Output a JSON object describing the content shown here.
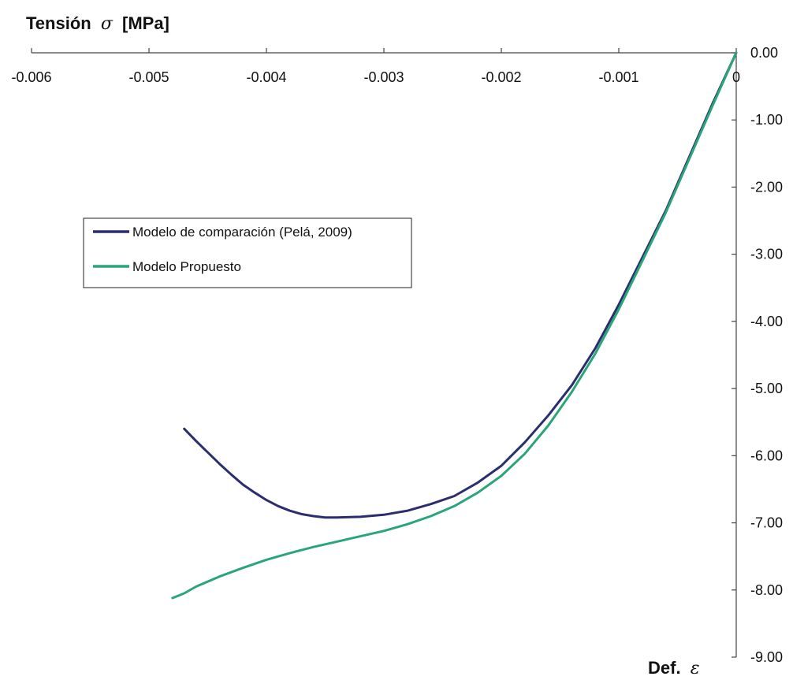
{
  "chart_data": {
    "type": "line",
    "title": "",
    "ylabel": {
      "text": "Tensión",
      "symbol": "σ",
      "unit": "[MPa]"
    },
    "xlabel": {
      "text": "Def.",
      "symbol": "ε"
    },
    "xlim": [
      -0.006,
      0
    ],
    "ylim": [
      -9,
      0
    ],
    "x_ticks": [
      -0.006,
      -0.005,
      -0.004,
      -0.003,
      -0.002,
      -0.001,
      0
    ],
    "x_tick_labels": [
      "-0.006",
      "-0.005",
      "-0.004",
      "-0.003",
      "-0.002",
      "-0.001",
      "0"
    ],
    "y_ticks": [
      0,
      -1,
      -2,
      -3,
      -4,
      -5,
      -6,
      -7,
      -8,
      -9
    ],
    "y_tick_labels": [
      "0.00",
      "-1.00",
      "-2.00",
      "-3.00",
      "-4.00",
      "-5.00",
      "-6.00",
      "-7.00",
      "-8.00",
      "-9.00"
    ],
    "grid": false,
    "legend_position": "left-middle",
    "series": [
      {
        "name": "Modelo de comparación (Pelá, 2009)",
        "color": "#2b2d6e",
        "x": [
          0,
          -0.0002,
          -0.0004,
          -0.0006,
          -0.0008,
          -0.001,
          -0.0012,
          -0.0014,
          -0.0016,
          -0.0018,
          -0.002,
          -0.0022,
          -0.0024,
          -0.0026,
          -0.0028,
          -0.003,
          -0.0032,
          -0.0034,
          -0.0035,
          -0.0036,
          -0.0037,
          -0.0038,
          -0.0039,
          -0.004,
          -0.0041,
          -0.0042,
          -0.0043,
          -0.0044,
          -0.0045,
          -0.0046,
          -0.0047
        ],
        "y": [
          0,
          -0.75,
          -1.55,
          -2.35,
          -3.05,
          -3.75,
          -4.4,
          -4.95,
          -5.4,
          -5.8,
          -6.15,
          -6.4,
          -6.6,
          -6.72,
          -6.82,
          -6.88,
          -6.91,
          -6.92,
          -6.92,
          -6.9,
          -6.87,
          -6.82,
          -6.75,
          -6.66,
          -6.55,
          -6.43,
          -6.28,
          -6.12,
          -5.95,
          -5.78,
          -5.6
        ]
      },
      {
        "name": "Modelo Propuesto",
        "color": "#2aa57a",
        "x": [
          0,
          -0.0002,
          -0.0004,
          -0.0006,
          -0.0008,
          -0.001,
          -0.0012,
          -0.0014,
          -0.0016,
          -0.0018,
          -0.002,
          -0.0022,
          -0.0024,
          -0.0026,
          -0.0028,
          -0.003,
          -0.0032,
          -0.0034,
          -0.0036,
          -0.0038,
          -0.004,
          -0.0042,
          -0.0044,
          -0.0046,
          -0.0047,
          -0.0048
        ],
        "y": [
          0,
          -0.78,
          -1.58,
          -2.38,
          -3.1,
          -3.82,
          -4.48,
          -5.05,
          -5.55,
          -5.97,
          -6.3,
          -6.55,
          -6.75,
          -6.9,
          -7.02,
          -7.12,
          -7.2,
          -7.28,
          -7.36,
          -7.45,
          -7.55,
          -7.67,
          -7.8,
          -7.95,
          -8.05,
          -8.12
        ]
      }
    ]
  }
}
